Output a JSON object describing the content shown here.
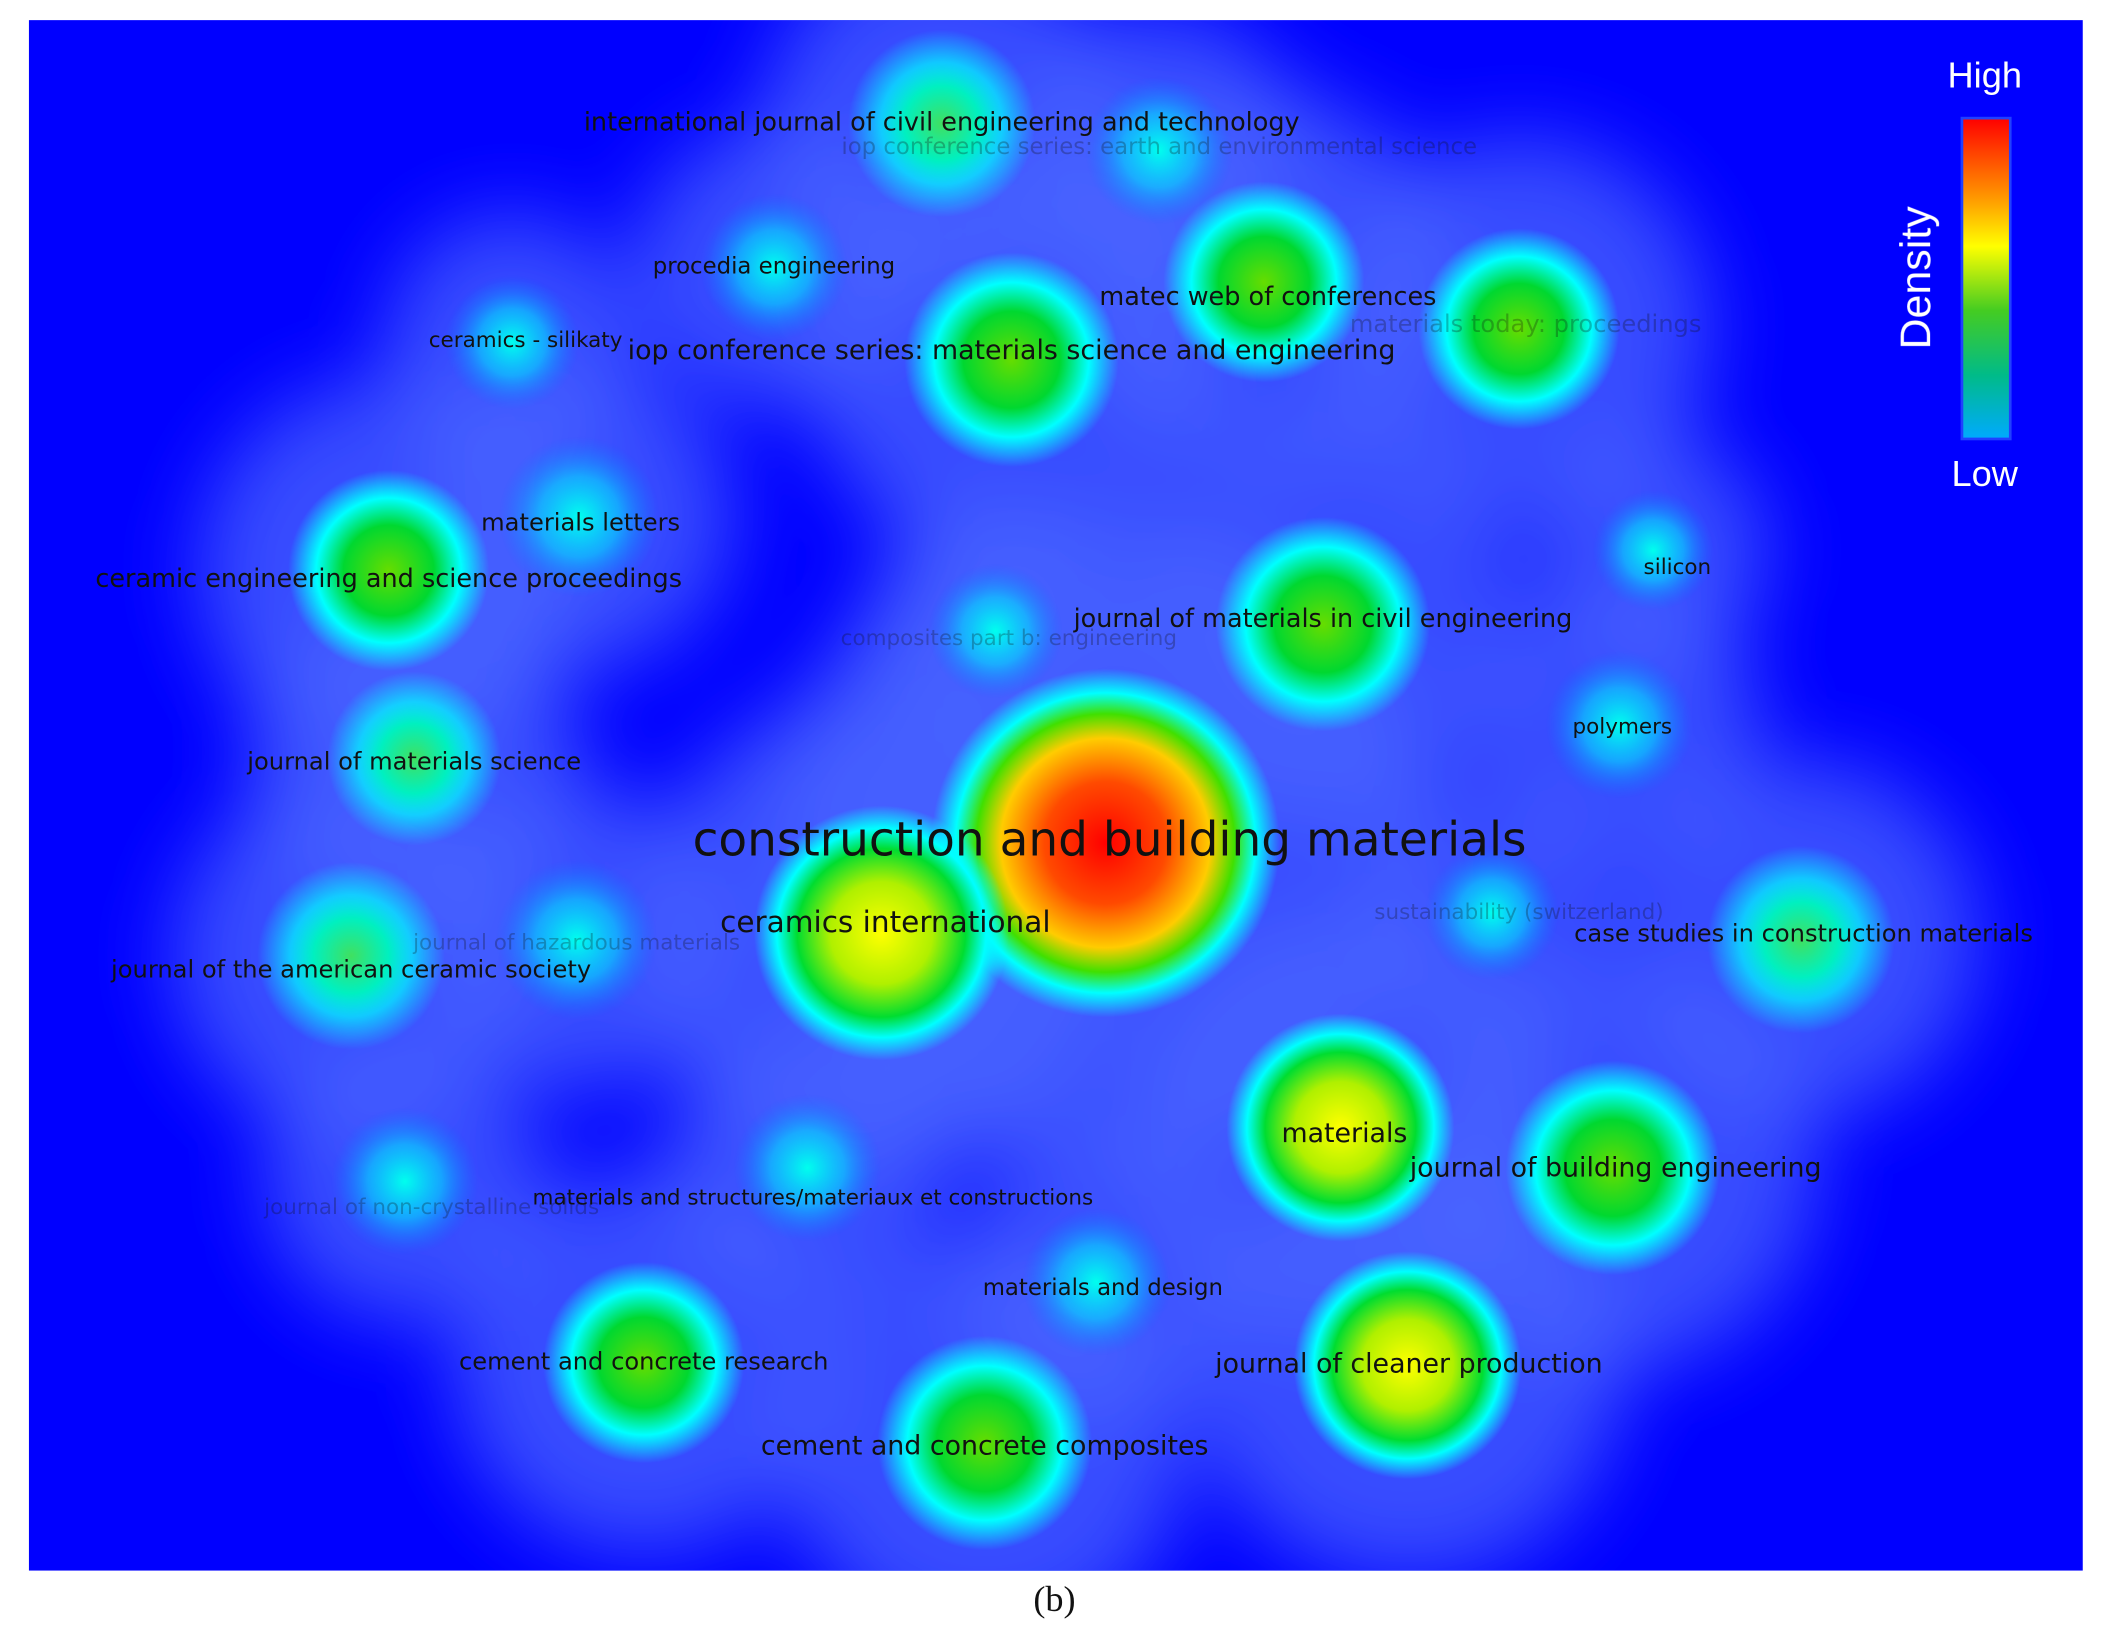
{
  "nodes": [
    {
      "label": "international journal of civil engineering and technology"
    },
    {
      "label": "iop conference series: earth and environmental science"
    },
    {
      "label": "procedia engineering"
    },
    {
      "label": "matec web of conferences"
    },
    {
      "label": "materials today: proceedings"
    },
    {
      "label": "ceramics - silikaty"
    },
    {
      "label": "iop conference series: materials science and engineering"
    },
    {
      "label": "materials letters"
    },
    {
      "label": "ceramic engineering and science proceedings"
    },
    {
      "label": "silicon"
    },
    {
      "label": "journal of materials in civil engineering"
    },
    {
      "label": "composites part b: engineering"
    },
    {
      "label": "polymers"
    },
    {
      "label": "journal of materials science"
    },
    {
      "label": "construction and building materials"
    },
    {
      "label": "ceramics international"
    },
    {
      "label": "sustainability (switzerland)"
    },
    {
      "label": "case studies in construction materials"
    },
    {
      "label": "journal of hazardous materials"
    },
    {
      "label": "journal of the american ceramic society"
    },
    {
      "label": "materials"
    },
    {
      "label": "journal of building engineering"
    },
    {
      "label": "journal of non-crystalline solids"
    },
    {
      "label": "materials and structures/materiaux et constructions"
    },
    {
      "label": "materials and design"
    },
    {
      "label": "cement and concrete research"
    },
    {
      "label": "journal of cleaner production"
    },
    {
      "label": "cement and concrete composites"
    }
  ],
  "legend": {
    "title": "Density",
    "high": "High",
    "low": "Low"
  },
  "caption": "(b)"
}
